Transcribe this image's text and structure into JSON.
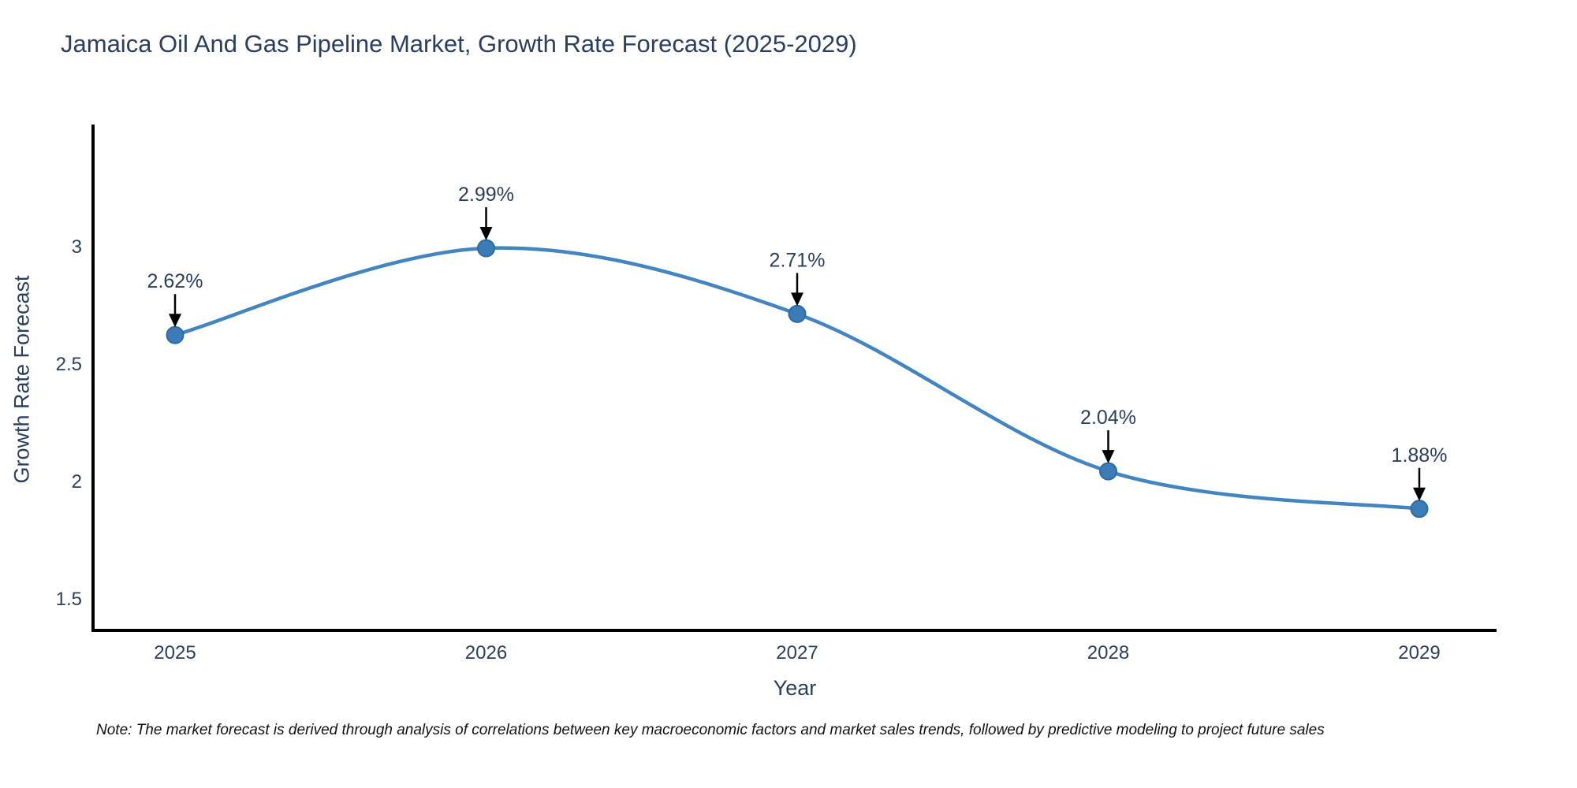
{
  "title": "Jamaica Oil And Gas Pipeline Market, Growth Rate Forecast (2025-2029)",
  "note": "Note: The market forecast is derived through analysis of correlations between key macroeconomic factors and market sales trends, followed by predictive modeling to project future sales",
  "chart_data": {
    "type": "line",
    "title": "Jamaica Oil And Gas Pipeline Market, Growth Rate Forecast (2025-2029)",
    "xlabel": "Year",
    "ylabel": "Growth Rate Forecast",
    "categories": [
      "2025",
      "2026",
      "2027",
      "2028",
      "2029"
    ],
    "series": [
      {
        "name": "Growth Rate Forecast",
        "values": [
          2.62,
          2.99,
          2.71,
          2.04,
          1.88
        ],
        "point_labels": [
          "2.62%",
          "2.99%",
          "2.71%",
          "2.04%",
          "1.88%"
        ]
      }
    ],
    "line_shape": "spline",
    "markers": true,
    "grid": false,
    "legend": "none",
    "ylim": [
      1.36,
      3.52
    ],
    "yticks": [
      1.5,
      2,
      2.5,
      3
    ],
    "ytick_labels": [
      "1.5",
      "2",
      "2.5",
      "3"
    ],
    "colors": {
      "line": "#4285c0",
      "marker_fill": "#3a7bb8",
      "marker_edge": "#2f6ba3",
      "axis": "#000000",
      "text": "#2a3f5f",
      "arrow": "#000000"
    }
  }
}
